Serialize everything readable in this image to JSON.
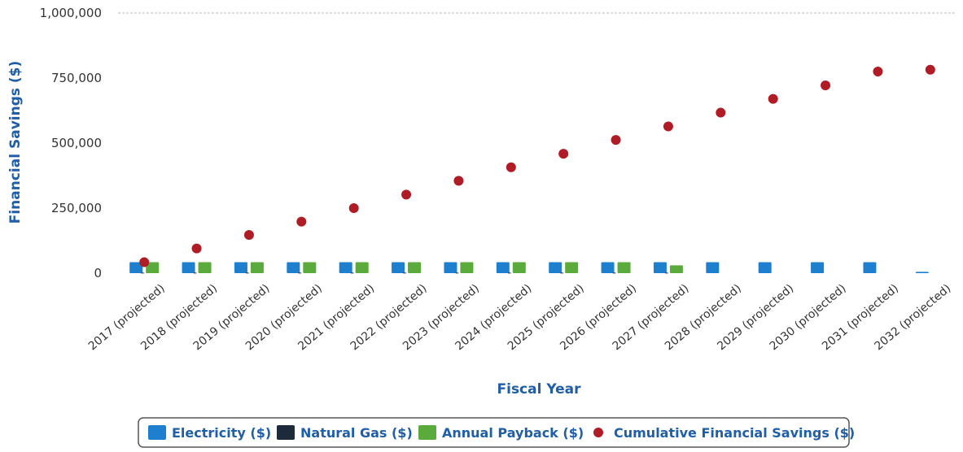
{
  "chart_data": {
    "type": "bar",
    "xlabel": "Fiscal Year",
    "ylabel": "Financial Savings ($)",
    "ylim": [
      0,
      1000000
    ],
    "yticks": [
      0,
      250000,
      500000,
      750000,
      1000000
    ],
    "ytick_labels": [
      "0",
      "250,000",
      "500,000",
      "750,000",
      "1,000,000"
    ],
    "categories": [
      "2017 (projected)",
      "2018 (projected)",
      "2019 (projected)",
      "2020 (projected)",
      "2021 (projected)",
      "2022 (projected)",
      "2023 (projected)",
      "2024 (projected)",
      "2025 (projected)",
      "2026 (projected)",
      "2027 (projected)",
      "2028 (projected)",
      "2029 (projected)",
      "2030 (projected)",
      "2031 (projected)",
      "2032 (projected)"
    ],
    "series": [
      {
        "name": "Electricity ($)",
        "type": "bar",
        "color": "#1f7fcf",
        "values": [
          42000,
          42000,
          42000,
          42000,
          42000,
          42000,
          42000,
          42000,
          42000,
          42000,
          42000,
          42000,
          42000,
          42000,
          42000,
          5000
        ]
      },
      {
        "name": "Natural Gas ($)",
        "type": "bar",
        "color": "#1c2a3a",
        "values": [
          2000,
          2000,
          2000,
          2000,
          2000,
          2000,
          2000,
          2000,
          2000,
          2000,
          2000,
          0,
          0,
          0,
          0,
          0
        ]
      },
      {
        "name": "Annual Payback ($)",
        "type": "bar",
        "color": "#5aaa3c",
        "values": [
          42000,
          42000,
          42000,
          42000,
          42000,
          42000,
          42000,
          42000,
          42000,
          42000,
          30000,
          0,
          0,
          0,
          0,
          0
        ]
      },
      {
        "name": "Cumulative Financial Savings ($)",
        "type": "scatter",
        "color": "#b01c25",
        "values": [
          42000,
          95000,
          147000,
          198000,
          250000,
          302000,
          355000,
          407000,
          459000,
          512000,
          564000,
          617000,
          670000,
          722000,
          775000,
          782000
        ]
      }
    ],
    "grid": false,
    "legend_position": "bottom"
  }
}
